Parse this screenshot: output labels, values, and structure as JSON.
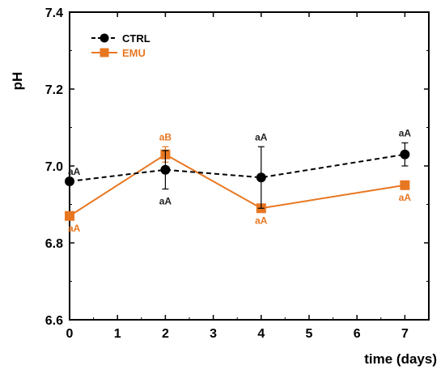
{
  "chart_data": {
    "type": "line",
    "title": "",
    "xlabel": "time (days)",
    "ylabel": "pH",
    "xlim": [
      0,
      7.5
    ],
    "ylim": [
      6.6,
      7.4
    ],
    "xticks": [
      "0",
      "1",
      "2",
      "3",
      "4",
      "5",
      "6",
      "7"
    ],
    "yticks": [
      "6.6",
      "6.8",
      "7.0",
      "7.2",
      "7.4"
    ],
    "grid": false,
    "legend_position": "top-left",
    "series": [
      {
        "name": "CTRL",
        "color": "#000000",
        "line_style": "dashed",
        "marker": "circle",
        "x": [
          0,
          2,
          4,
          7
        ],
        "y": [
          6.96,
          6.99,
          6.97,
          7.03
        ],
        "error": [
          0.0,
          0.05,
          0.08,
          0.03
        ],
        "labels": [
          "aA",
          "aA",
          "aA",
          "aA"
        ],
        "label_positions": [
          "above",
          "below",
          "above",
          "above"
        ]
      },
      {
        "name": "EMU",
        "color": "#E87722",
        "line_style": "solid",
        "marker": "square",
        "x": [
          0,
          2,
          4,
          7
        ],
        "y": [
          6.87,
          7.03,
          6.89,
          6.95
        ],
        "error": [
          0.0,
          0.02,
          0.0,
          0.0
        ],
        "labels": [
          "aA",
          "aB",
          "aA",
          "aA"
        ],
        "label_positions": [
          "below",
          "above",
          "below",
          "below"
        ]
      }
    ]
  }
}
